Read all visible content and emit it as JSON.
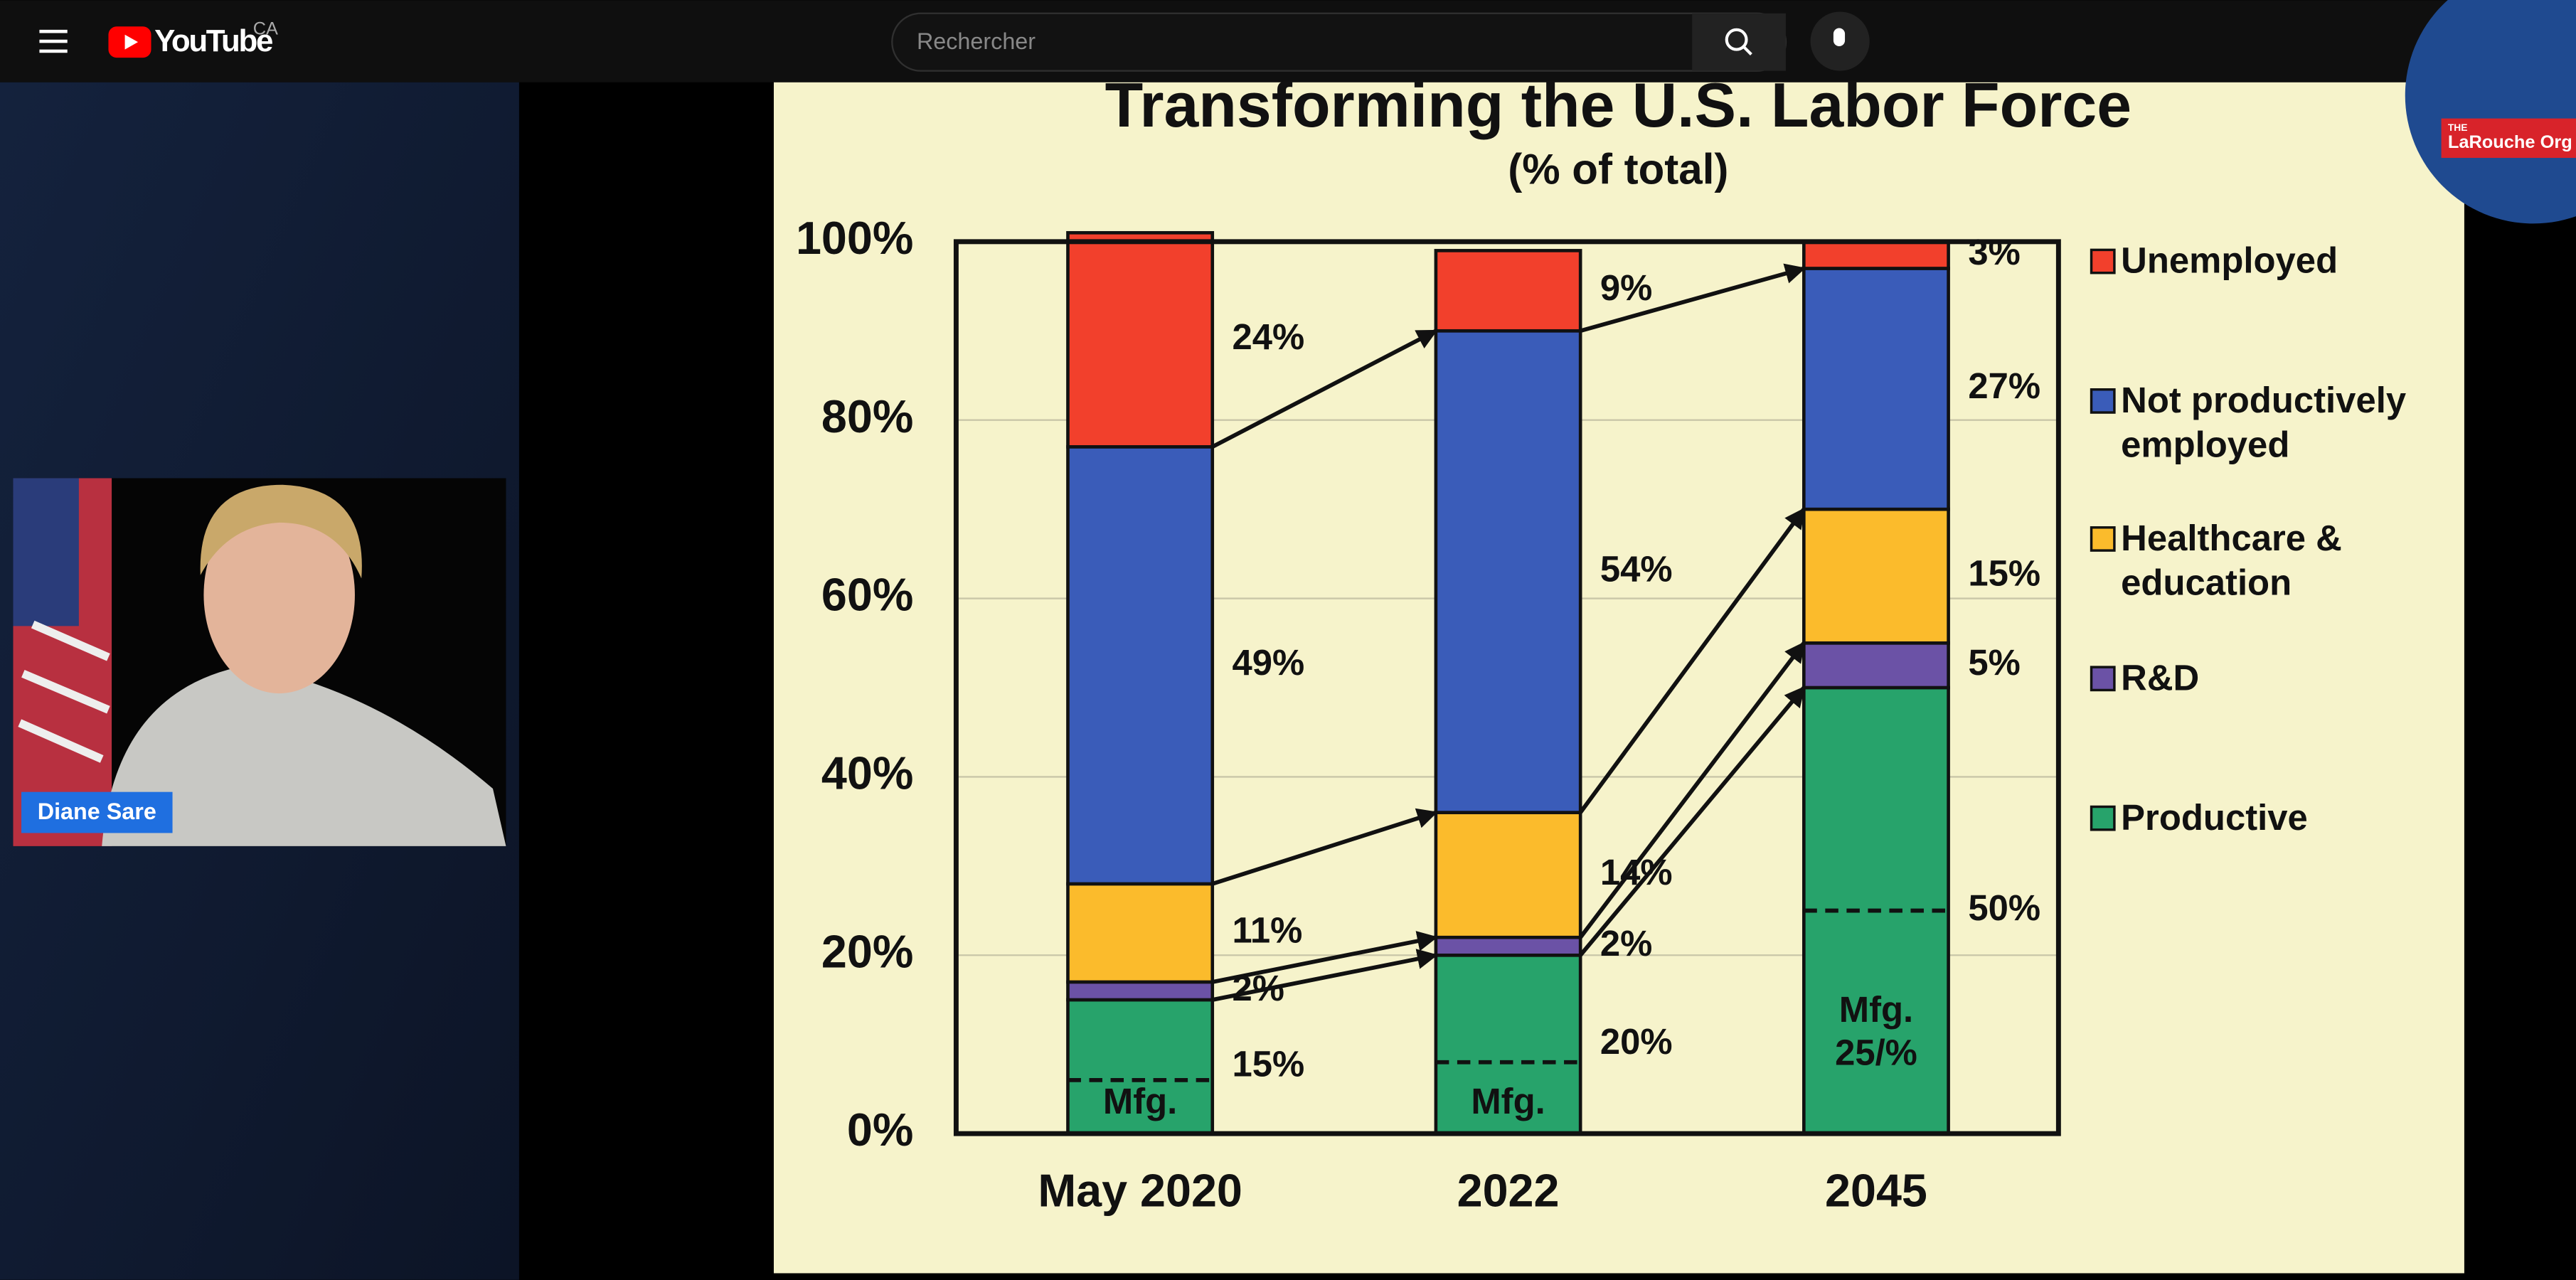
{
  "header": {
    "logo": "YouTube",
    "region": "CA",
    "search_placeholder": "Rechercher"
  },
  "webcam": {
    "name": "Diane Sare"
  },
  "slide": {
    "logo_small": "THE",
    "logo": "LaRouche Org",
    "chart": {
      "type": "bar",
      "stacked": true,
      "title": "Transforming the U.S. Labor Force",
      "subtitle": "(% of total)",
      "categories": [
        "May 2020",
        "2022",
        "2045"
      ],
      "series": [
        {
          "name": "Productive",
          "color": "#27a36b",
          "values": [
            15,
            20,
            50
          ],
          "value_labels": [
            "15%",
            "20%",
            "50%"
          ]
        },
        {
          "name": "R&D",
          "color": "#6b52a6",
          "values": [
            2,
            2,
            5
          ],
          "value_labels": [
            "2%",
            "2%",
            "5%"
          ]
        },
        {
          "name": "Healthcare & education",
          "color": "#fbbb2c",
          "values": [
            11,
            14,
            15
          ],
          "value_labels": [
            "11%",
            "14%",
            "15%"
          ]
        },
        {
          "name": "Not productively employed",
          "color": "#3a5cb9",
          "values": [
            49,
            54,
            27
          ],
          "value_labels": [
            "49%",
            "54%",
            "27%"
          ]
        },
        {
          "name": "Unemployed",
          "color": "#f2402c",
          "values": [
            24,
            9,
            3
          ],
          "value_labels": [
            "24%",
            "9%",
            "3%"
          ]
        }
      ],
      "ylim": [
        0,
        100
      ],
      "yticks": [
        {
          "value": 0,
          "label": "0%"
        },
        {
          "value": 20,
          "label": "20%"
        },
        {
          "value": 40,
          "label": "40%"
        },
        {
          "value": 60,
          "label": "60%"
        },
        {
          "value": 80,
          "label": "80%"
        },
        {
          "value": 100,
          "label": "100%"
        }
      ],
      "grid": true,
      "mfg": {
        "label": "Mfg.",
        "values": [
          6,
          8,
          25
        ],
        "note": "25/%"
      }
    }
  }
}
